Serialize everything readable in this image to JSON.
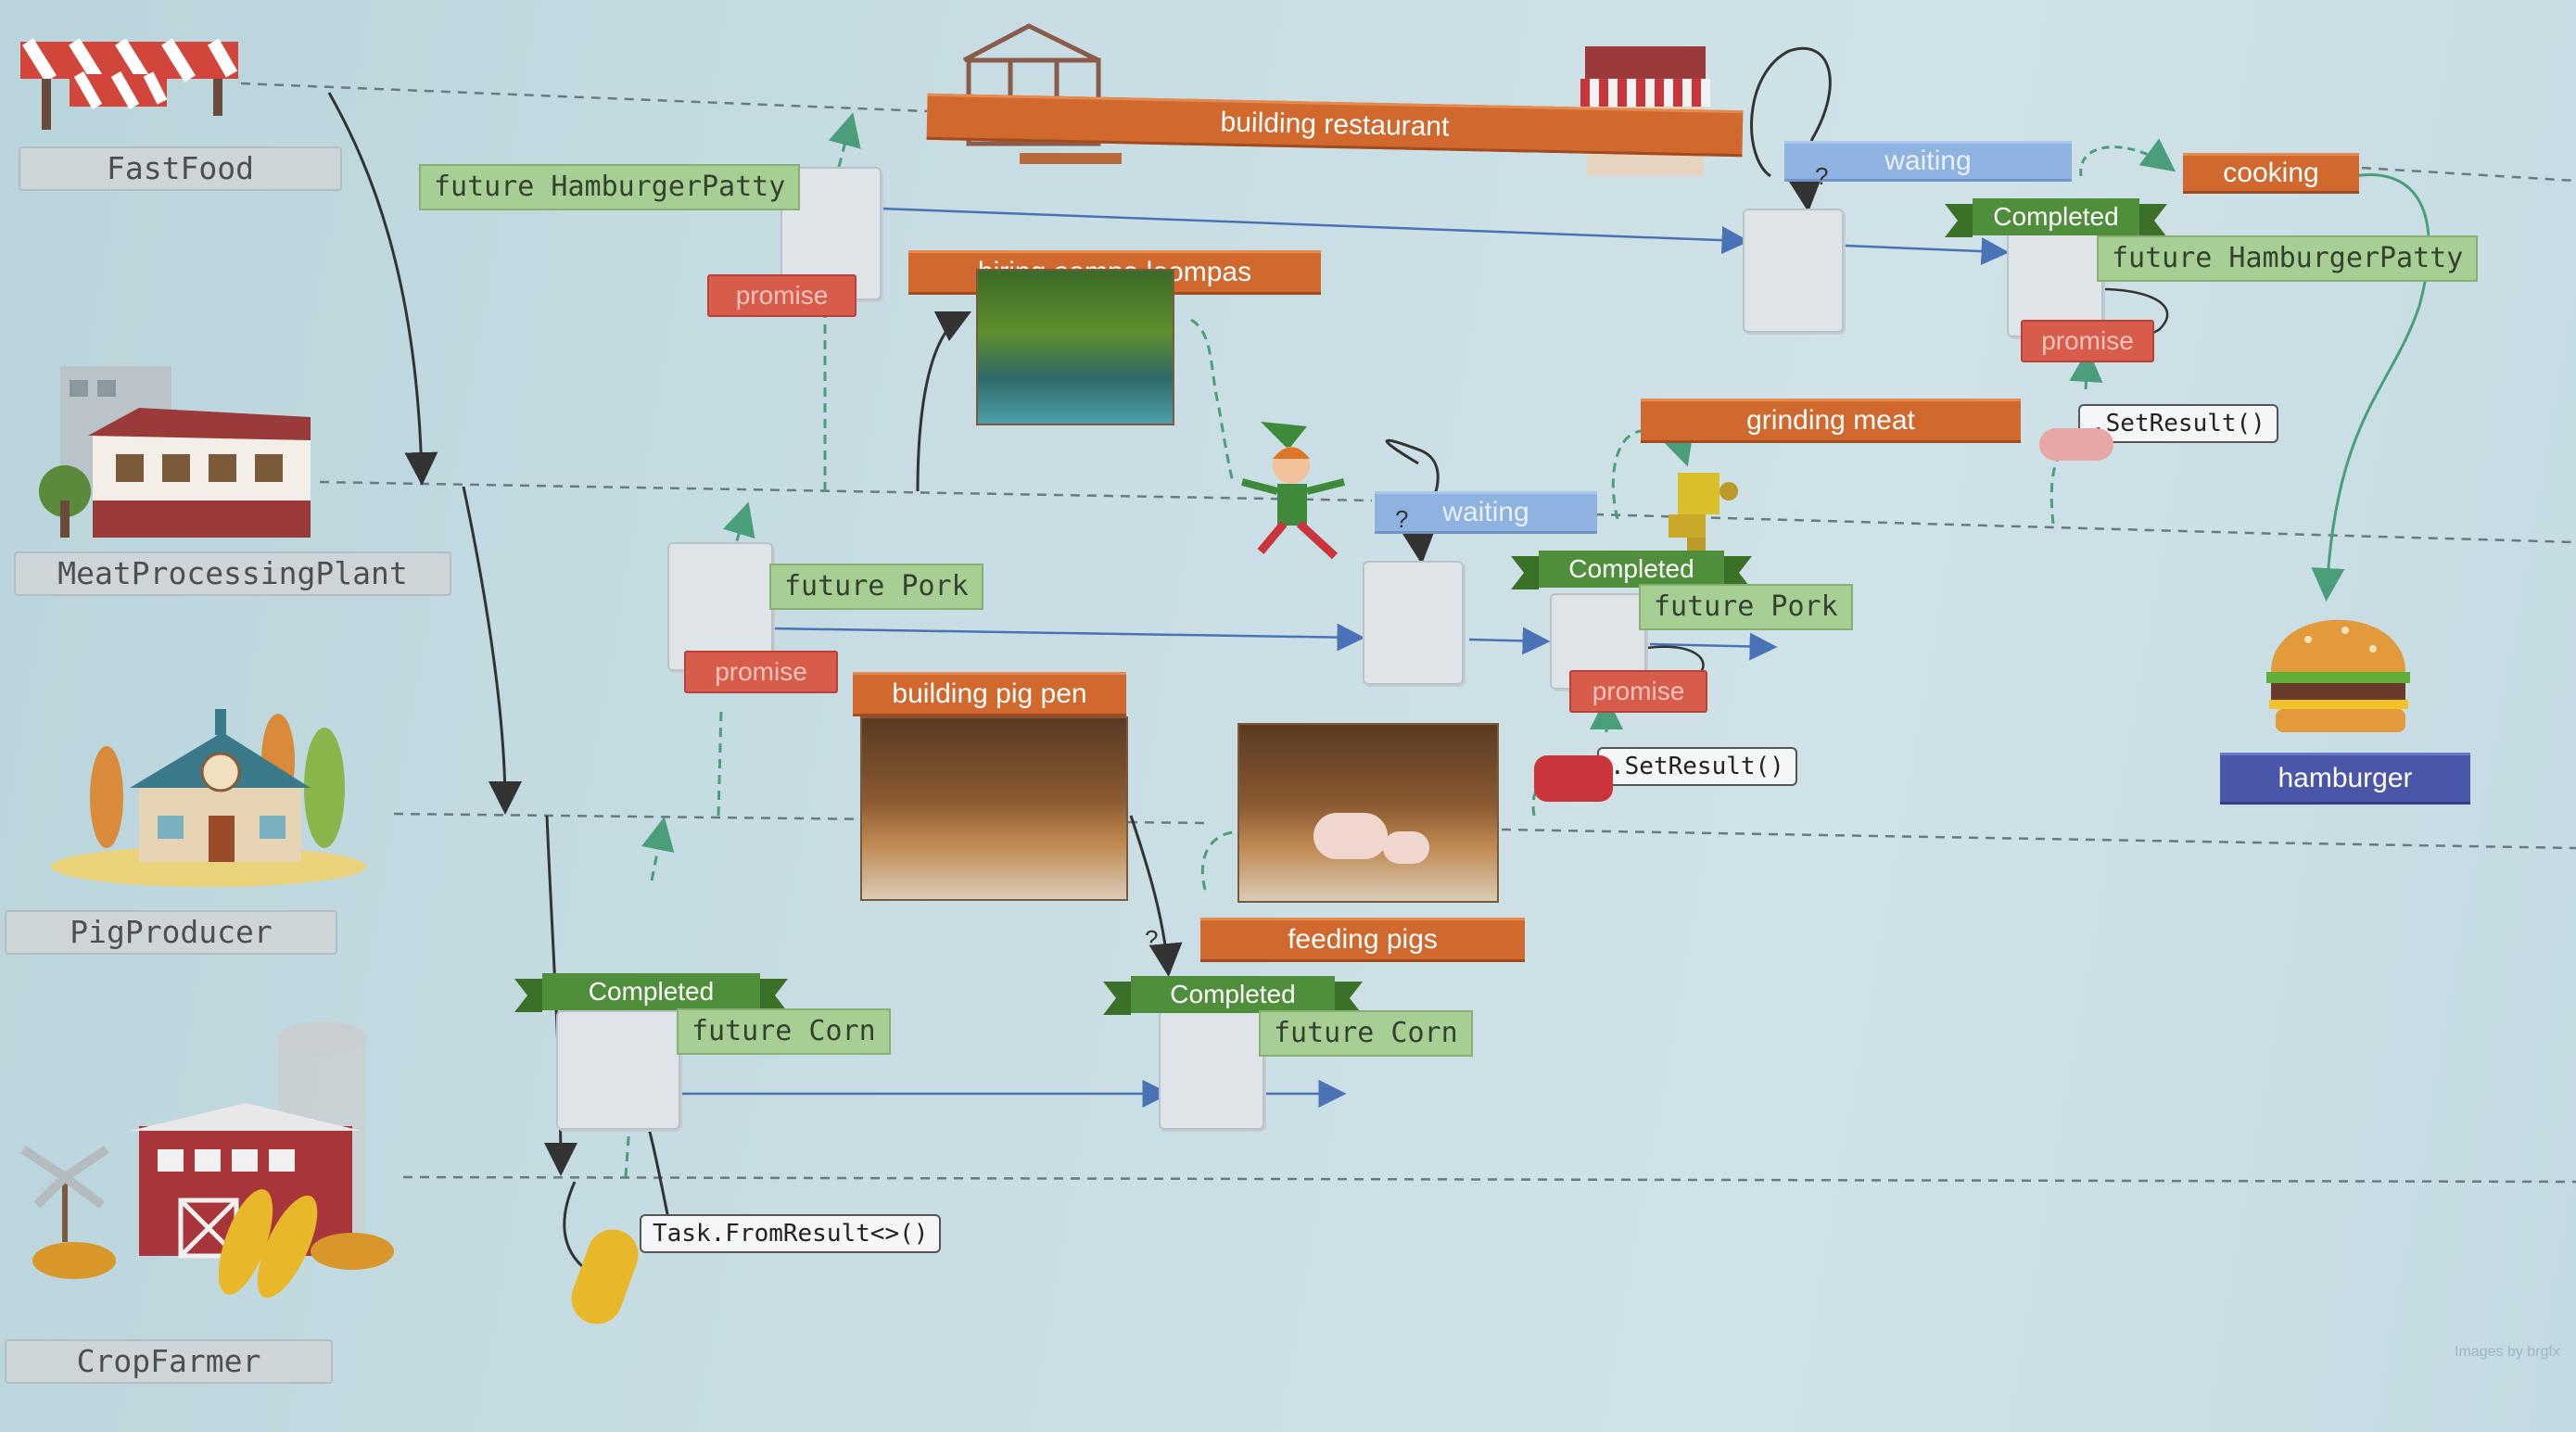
{
  "lanes": {
    "fastfood": "FastFood",
    "meat": "MeatProcessingPlant",
    "pig": "PigProducer",
    "crop": "CropFarmer"
  },
  "banners": {
    "building_restaurant": "building restaurant",
    "waiting_top": "waiting",
    "cooking": "cooking",
    "hiring": "hiring oompa loompas",
    "grinding": "grinding meat",
    "waiting_mid": "waiting",
    "building_pig_pen": "building pig pen",
    "feeding_pigs": "feeding pigs",
    "hamburger": "hamburger"
  },
  "futures": {
    "hamburger_patty_1": "future HamburgerPatty",
    "hamburger_patty_2": "future HamburgerPatty",
    "pork_1": "future Pork",
    "pork_2": "future Pork",
    "corn_1": "future Corn",
    "corn_2": "future Corn"
  },
  "states": {
    "completed": "Completed",
    "promise": "promise",
    "question": "?"
  },
  "code": {
    "set_result": ".SetResult()",
    "from_result": "Task.FromResult<>()"
  },
  "credit": "Images by brgfx",
  "colors": {
    "orange": "#d1682e",
    "blue": "#8fb3e0",
    "green": "#4f8f3b",
    "future_green": "#a7cf93",
    "promise_red": "#d75c4c"
  }
}
